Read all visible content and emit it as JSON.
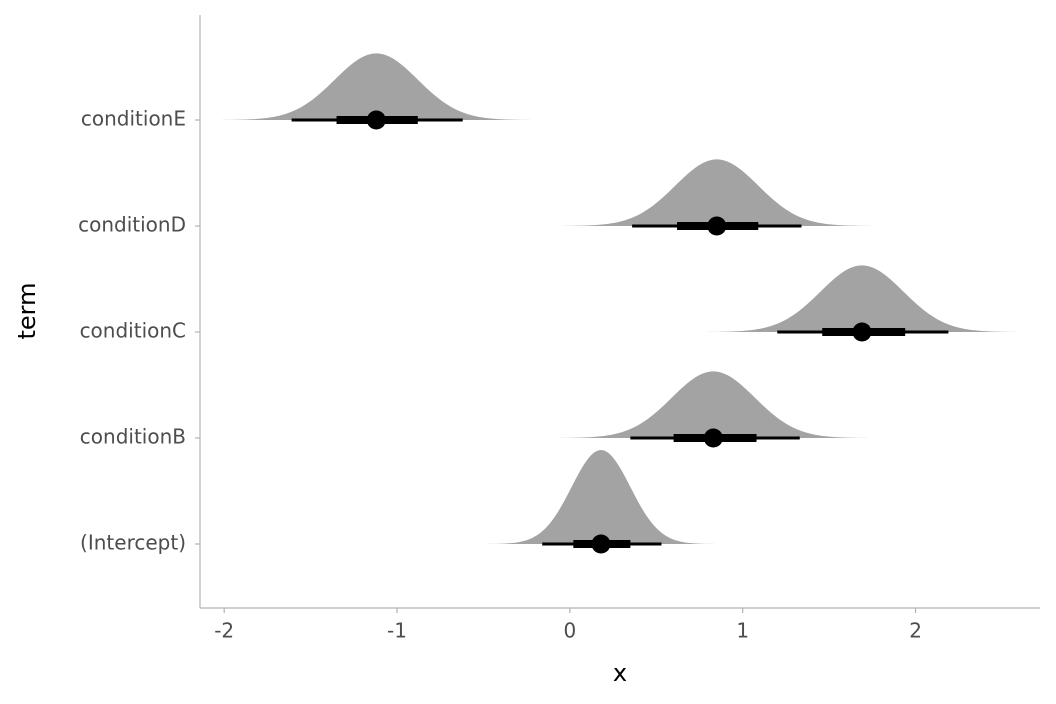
{
  "chart_data": {
    "type": "halfeye",
    "x_label": "x",
    "y_label": "term",
    "categories": [
      "(Intercept)",
      "conditionB",
      "conditionC",
      "conditionD",
      "conditionE"
    ],
    "point": [
      0.18,
      0.83,
      1.69,
      0.85,
      -1.12
    ],
    "sd": [
      0.17,
      0.24,
      0.24,
      0.24,
      0.24
    ],
    "lower66": [
      0.02,
      0.6,
      1.46,
      0.62,
      -1.35
    ],
    "upper66": [
      0.35,
      1.08,
      1.94,
      1.09,
      -0.88
    ],
    "lower95": [
      -0.16,
      0.35,
      1.2,
      0.36,
      -1.61
    ],
    "upper95": [
      0.53,
      1.33,
      2.19,
      1.34,
      -0.62
    ],
    "slab_color": "#a3a3a3",
    "interval_color": "#000000",
    "xlim": [
      -2.14,
      2.72
    ],
    "xticks": [
      -2,
      -1,
      0,
      1,
      2
    ],
    "grid": false
  }
}
